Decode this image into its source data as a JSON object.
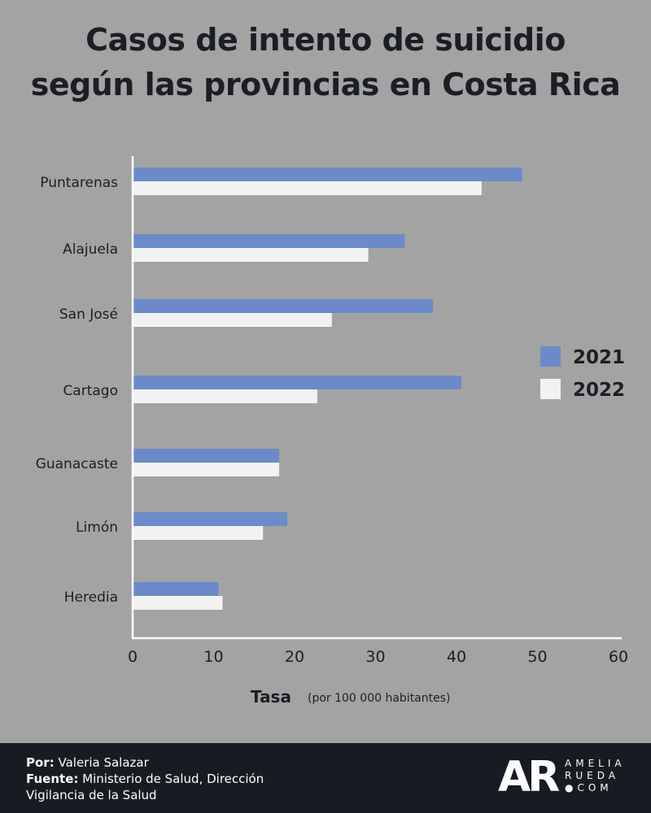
{
  "title_lines": [
    "Casos de intento de suicidio",
    "según las provincias en Costa Rica"
  ],
  "chart_data": {
    "type": "bar",
    "orientation": "horizontal",
    "title": "Casos de intento de suicidio según las provincias en Costa Rica",
    "categories": [
      "Puntarenas",
      "Alajuela",
      "San José",
      "Cartago",
      "Guanacaste",
      "Limón",
      "Heredia"
    ],
    "series": [
      {
        "name": "2021",
        "color": "#6a8ac8",
        "values": [
          48,
          33.5,
          37,
          40.5,
          18,
          19,
          10.5
        ]
      },
      {
        "name": "2022",
        "color": "#f2f2f2",
        "values": [
          43,
          29,
          24.5,
          22.7,
          18,
          16,
          11
        ]
      }
    ],
    "xlabel": "Tasa",
    "xlabel_note": "(por 100 000 habitantes)",
    "xlim": [
      0,
      60
    ],
    "xticks": [
      "0",
      "10",
      "20",
      "30",
      "40",
      "50",
      "60"
    ],
    "grid": false,
    "legend_position": "right"
  },
  "footer": {
    "por_label": "Por:",
    "por_value": "Valeria Salazar",
    "fuente_label": "Fuente:",
    "fuente_value": "Ministerio de Salud, Dirección",
    "fuente_value_2": "Vigilancia de la Salud",
    "logo_letters": "AR",
    "logo_line1": "AMELIA",
    "logo_line2": "RUEDA",
    "logo_line3": "●COM"
  }
}
